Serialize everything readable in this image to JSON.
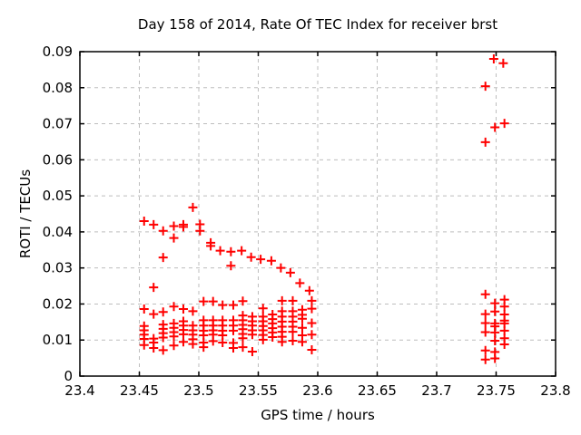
{
  "chart_data": {
    "type": "scatter",
    "title": "Day 158 of 2014, Rate Of TEC Index for receiver brst",
    "xlabel": "GPS time / hours",
    "ylabel": "ROTI / TECUs",
    "xlim": [
      23.4,
      23.8
    ],
    "ylim": [
      0,
      0.09
    ],
    "xticks": [
      23.4,
      23.45,
      23.5,
      23.55,
      23.6,
      23.65,
      23.7,
      23.75,
      23.8
    ],
    "xtick_labels": [
      "23.4",
      "23.45",
      "23.5",
      "23.55",
      "23.6",
      "23.65",
      "23.7",
      "23.75",
      "23.8"
    ],
    "yticks": [
      0,
      0.01,
      0.02,
      0.03,
      0.04,
      0.05,
      0.06,
      0.07,
      0.08,
      0.09
    ],
    "ytick_labels": [
      "0",
      "0.01",
      "0.02",
      "0.03",
      "0.04",
      "0.05",
      "0.06",
      "0.07",
      "0.08",
      "0.09"
    ],
    "grid": true,
    "legend": "none",
    "marker": "plus",
    "marker_color": "#ff0000",
    "grid_color": "#bdbdbd",
    "axis_color": "#000000",
    "series": [
      {
        "name": "ROTI",
        "points": [
          [
            23.454,
            0.043
          ],
          [
            23.462,
            0.042
          ],
          [
            23.47,
            0.0403
          ],
          [
            23.47,
            0.0329
          ],
          [
            23.479,
            0.0416
          ],
          [
            23.479,
            0.0383
          ],
          [
            23.487,
            0.042
          ],
          [
            23.487,
            0.0414
          ],
          [
            23.495,
            0.0468
          ],
          [
            23.501,
            0.0421
          ],
          [
            23.501,
            0.0403
          ],
          [
            23.51,
            0.037
          ],
          [
            23.51,
            0.0361
          ],
          [
            23.518,
            0.0348
          ],
          [
            23.527,
            0.0345
          ],
          [
            23.527,
            0.0306
          ],
          [
            23.536,
            0.0348
          ],
          [
            23.544,
            0.033
          ],
          [
            23.552,
            0.0324
          ],
          [
            23.561,
            0.032
          ],
          [
            23.569,
            0.03
          ],
          [
            23.577,
            0.0287
          ],
          [
            23.585,
            0.0258
          ],
          [
            23.593,
            0.0237
          ],
          [
            23.454,
            0.0186
          ],
          [
            23.454,
            0.0139
          ],
          [
            23.454,
            0.0127
          ],
          [
            23.454,
            0.0115
          ],
          [
            23.454,
            0.0103
          ],
          [
            23.454,
            0.0086
          ],
          [
            23.462,
            0.0246
          ],
          [
            23.462,
            0.0172
          ],
          [
            23.462,
            0.0104
          ],
          [
            23.462,
            0.0093
          ],
          [
            23.462,
            0.0078
          ],
          [
            23.47,
            0.0178
          ],
          [
            23.47,
            0.0143
          ],
          [
            23.47,
            0.0131
          ],
          [
            23.47,
            0.0119
          ],
          [
            23.47,
            0.0107
          ],
          [
            23.47,
            0.0072
          ],
          [
            23.479,
            0.0193
          ],
          [
            23.479,
            0.0146
          ],
          [
            23.479,
            0.0134
          ],
          [
            23.479,
            0.0122
          ],
          [
            23.479,
            0.011
          ],
          [
            23.479,
            0.0085
          ],
          [
            23.487,
            0.0186
          ],
          [
            23.487,
            0.0152
          ],
          [
            23.487,
            0.014
          ],
          [
            23.487,
            0.0128
          ],
          [
            23.487,
            0.0116
          ],
          [
            23.487,
            0.0095
          ],
          [
            23.495,
            0.018
          ],
          [
            23.495,
            0.014
          ],
          [
            23.495,
            0.0127
          ],
          [
            23.495,
            0.0115
          ],
          [
            23.495,
            0.0102
          ],
          [
            23.495,
            0.0089
          ],
          [
            23.504,
            0.0207
          ],
          [
            23.504,
            0.0155
          ],
          [
            23.504,
            0.014
          ],
          [
            23.504,
            0.0126
          ],
          [
            23.504,
            0.0113
          ],
          [
            23.504,
            0.0093
          ],
          [
            23.504,
            0.008
          ],
          [
            23.512,
            0.0207
          ],
          [
            23.512,
            0.0155
          ],
          [
            23.512,
            0.014
          ],
          [
            23.512,
            0.0127
          ],
          [
            23.512,
            0.0115
          ],
          [
            23.512,
            0.0097
          ],
          [
            23.52,
            0.0197
          ],
          [
            23.52,
            0.0155
          ],
          [
            23.52,
            0.014
          ],
          [
            23.52,
            0.0126
          ],
          [
            23.52,
            0.0113
          ],
          [
            23.52,
            0.0093
          ],
          [
            23.529,
            0.0197
          ],
          [
            23.529,
            0.0155
          ],
          [
            23.529,
            0.014
          ],
          [
            23.529,
            0.0126
          ],
          [
            23.529,
            0.0092
          ],
          [
            23.529,
            0.0078
          ],
          [
            23.537,
            0.0208
          ],
          [
            23.537,
            0.0168
          ],
          [
            23.537,
            0.0155
          ],
          [
            23.537,
            0.0142
          ],
          [
            23.537,
            0.013
          ],
          [
            23.537,
            0.0117
          ],
          [
            23.537,
            0.0105
          ],
          [
            23.537,
            0.008
          ],
          [
            23.545,
            0.0165
          ],
          [
            23.545,
            0.0152
          ],
          [
            23.545,
            0.014
          ],
          [
            23.545,
            0.0127
          ],
          [
            23.545,
            0.0115
          ],
          [
            23.545,
            0.0068
          ],
          [
            23.554,
            0.0188
          ],
          [
            23.554,
            0.0165
          ],
          [
            23.554,
            0.0152
          ],
          [
            23.554,
            0.0139
          ],
          [
            23.554,
            0.0127
          ],
          [
            23.554,
            0.0114
          ],
          [
            23.554,
            0.0101
          ],
          [
            23.562,
            0.0171
          ],
          [
            23.562,
            0.0158
          ],
          [
            23.562,
            0.0146
          ],
          [
            23.562,
            0.0133
          ],
          [
            23.562,
            0.0121
          ],
          [
            23.562,
            0.0108
          ],
          [
            23.57,
            0.0209
          ],
          [
            23.57,
            0.018
          ],
          [
            23.57,
            0.0165
          ],
          [
            23.57,
            0.0151
          ],
          [
            23.57,
            0.0137
          ],
          [
            23.57,
            0.0123
          ],
          [
            23.57,
            0.0109
          ],
          [
            23.57,
            0.0095
          ],
          [
            23.579,
            0.0209
          ],
          [
            23.579,
            0.018
          ],
          [
            23.579,
            0.0165
          ],
          [
            23.579,
            0.0151
          ],
          [
            23.579,
            0.0137
          ],
          [
            23.579,
            0.0123
          ],
          [
            23.579,
            0.0098
          ],
          [
            23.587,
            0.0184
          ],
          [
            23.587,
            0.017
          ],
          [
            23.587,
            0.0159
          ],
          [
            23.587,
            0.0134
          ],
          [
            23.587,
            0.0113
          ],
          [
            23.587,
            0.0095
          ],
          [
            23.595,
            0.0209
          ],
          [
            23.595,
            0.0187
          ],
          [
            23.595,
            0.0147
          ],
          [
            23.595,
            0.0115
          ],
          [
            23.595,
            0.0073
          ],
          [
            23.741,
            0.0804
          ],
          [
            23.741,
            0.0649
          ],
          [
            23.748,
            0.088
          ],
          [
            23.756,
            0.0868
          ],
          [
            23.749,
            0.069
          ],
          [
            23.757,
            0.0701
          ],
          [
            23.741,
            0.0227
          ],
          [
            23.741,
            0.0172
          ],
          [
            23.741,
            0.0147
          ],
          [
            23.741,
            0.0122
          ],
          [
            23.741,
            0.0071
          ],
          [
            23.741,
            0.0046
          ],
          [
            23.749,
            0.0202
          ],
          [
            23.749,
            0.0179
          ],
          [
            23.749,
            0.0146
          ],
          [
            23.749,
            0.0138
          ],
          [
            23.749,
            0.0121
          ],
          [
            23.749,
            0.0098
          ],
          [
            23.749,
            0.0067
          ],
          [
            23.749,
            0.0049
          ],
          [
            23.757,
            0.0212
          ],
          [
            23.757,
            0.0193
          ],
          [
            23.757,
            0.0171
          ],
          [
            23.757,
            0.0154
          ],
          [
            23.757,
            0.0146
          ],
          [
            23.757,
            0.0126
          ],
          [
            23.757,
            0.0105
          ],
          [
            23.757,
            0.0088
          ]
        ]
      }
    ]
  }
}
